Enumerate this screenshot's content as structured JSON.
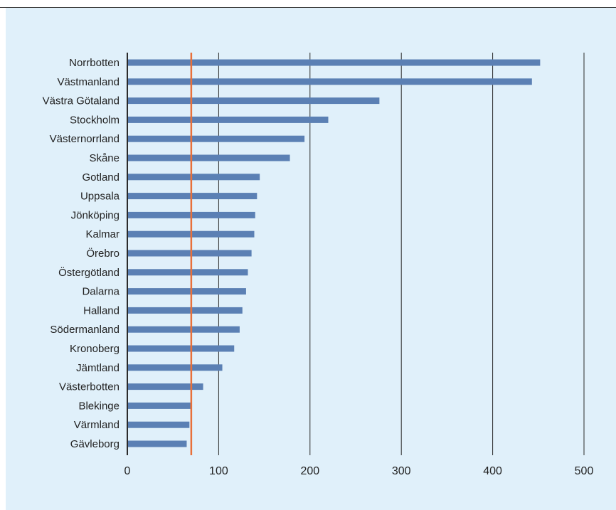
{
  "colors": {
    "panel_bg": "#e0f0fa",
    "bar": "#5b80b4",
    "grid": "#2b2b2b",
    "reference_line": "#e8703a"
  },
  "chart_data": {
    "type": "bar",
    "orientation": "horizontal",
    "title": "",
    "xlabel": "",
    "ylabel": "",
    "categories": [
      "Norrbotten",
      "Västmanland",
      "Västra Götaland",
      "Stockholm",
      "Västernorrland",
      "Skåne",
      "Gotland",
      "Uppsala",
      "Jönköping",
      "Kalmar",
      "Örebro",
      "Östergötland",
      "Dalarna",
      "Halland",
      "Södermanland",
      "Kronoberg",
      "Jämtland",
      "Västerbotten",
      "Blekinge",
      "Värmland",
      "Gävleborg"
    ],
    "values": [
      452,
      443,
      276,
      220,
      194,
      178,
      145,
      142,
      140,
      139,
      136,
      132,
      130,
      126,
      123,
      117,
      104,
      83,
      70,
      68,
      65
    ],
    "xlim": [
      0,
      500
    ],
    "xticks": [
      0,
      100,
      200,
      300,
      400,
      500
    ],
    "reference_line": 70,
    "grid": "vertical"
  }
}
